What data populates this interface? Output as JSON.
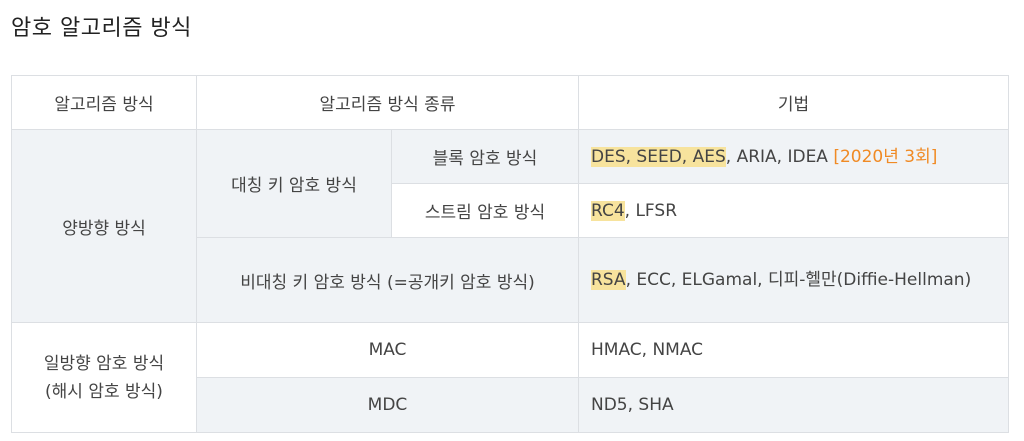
{
  "title": "암호 알고리즘 방식",
  "table": {
    "headers": [
      "알고리즘 방식",
      "알고리즘 방식 종류",
      "기법"
    ],
    "two_way": "양방향 방식",
    "symmetric": "대칭 키 암호 방식",
    "block": "블록 암호 방식",
    "block_hl": "DES, SEED, AES",
    "block_rest": ", ARIA, IDEA ",
    "block_tag": "[2020년 3회]",
    "stream": "스트림 암호 방식",
    "stream_hl": "RC4",
    "stream_rest": ", LFSR",
    "asymmetric": "비대칭 키 암호 방식 (=공개키 암호 방식)",
    "asym_hl": "RSA",
    "asym_rest": ", ECC, ELGamal, 디피-헬만(Diffie-Hellman)",
    "one_way_line1": "일방향 암호 방식",
    "one_way_line2": "(해시 암호 방식)",
    "mac": "MAC",
    "mac_tech": "HMAC, NMAC",
    "mdc": "MDC",
    "mdc_tech": "ND5, SHA"
  },
  "colors": {
    "highlight": "#f7e39d",
    "tag": "#f08a24",
    "shade": "#f0f3f6"
  }
}
